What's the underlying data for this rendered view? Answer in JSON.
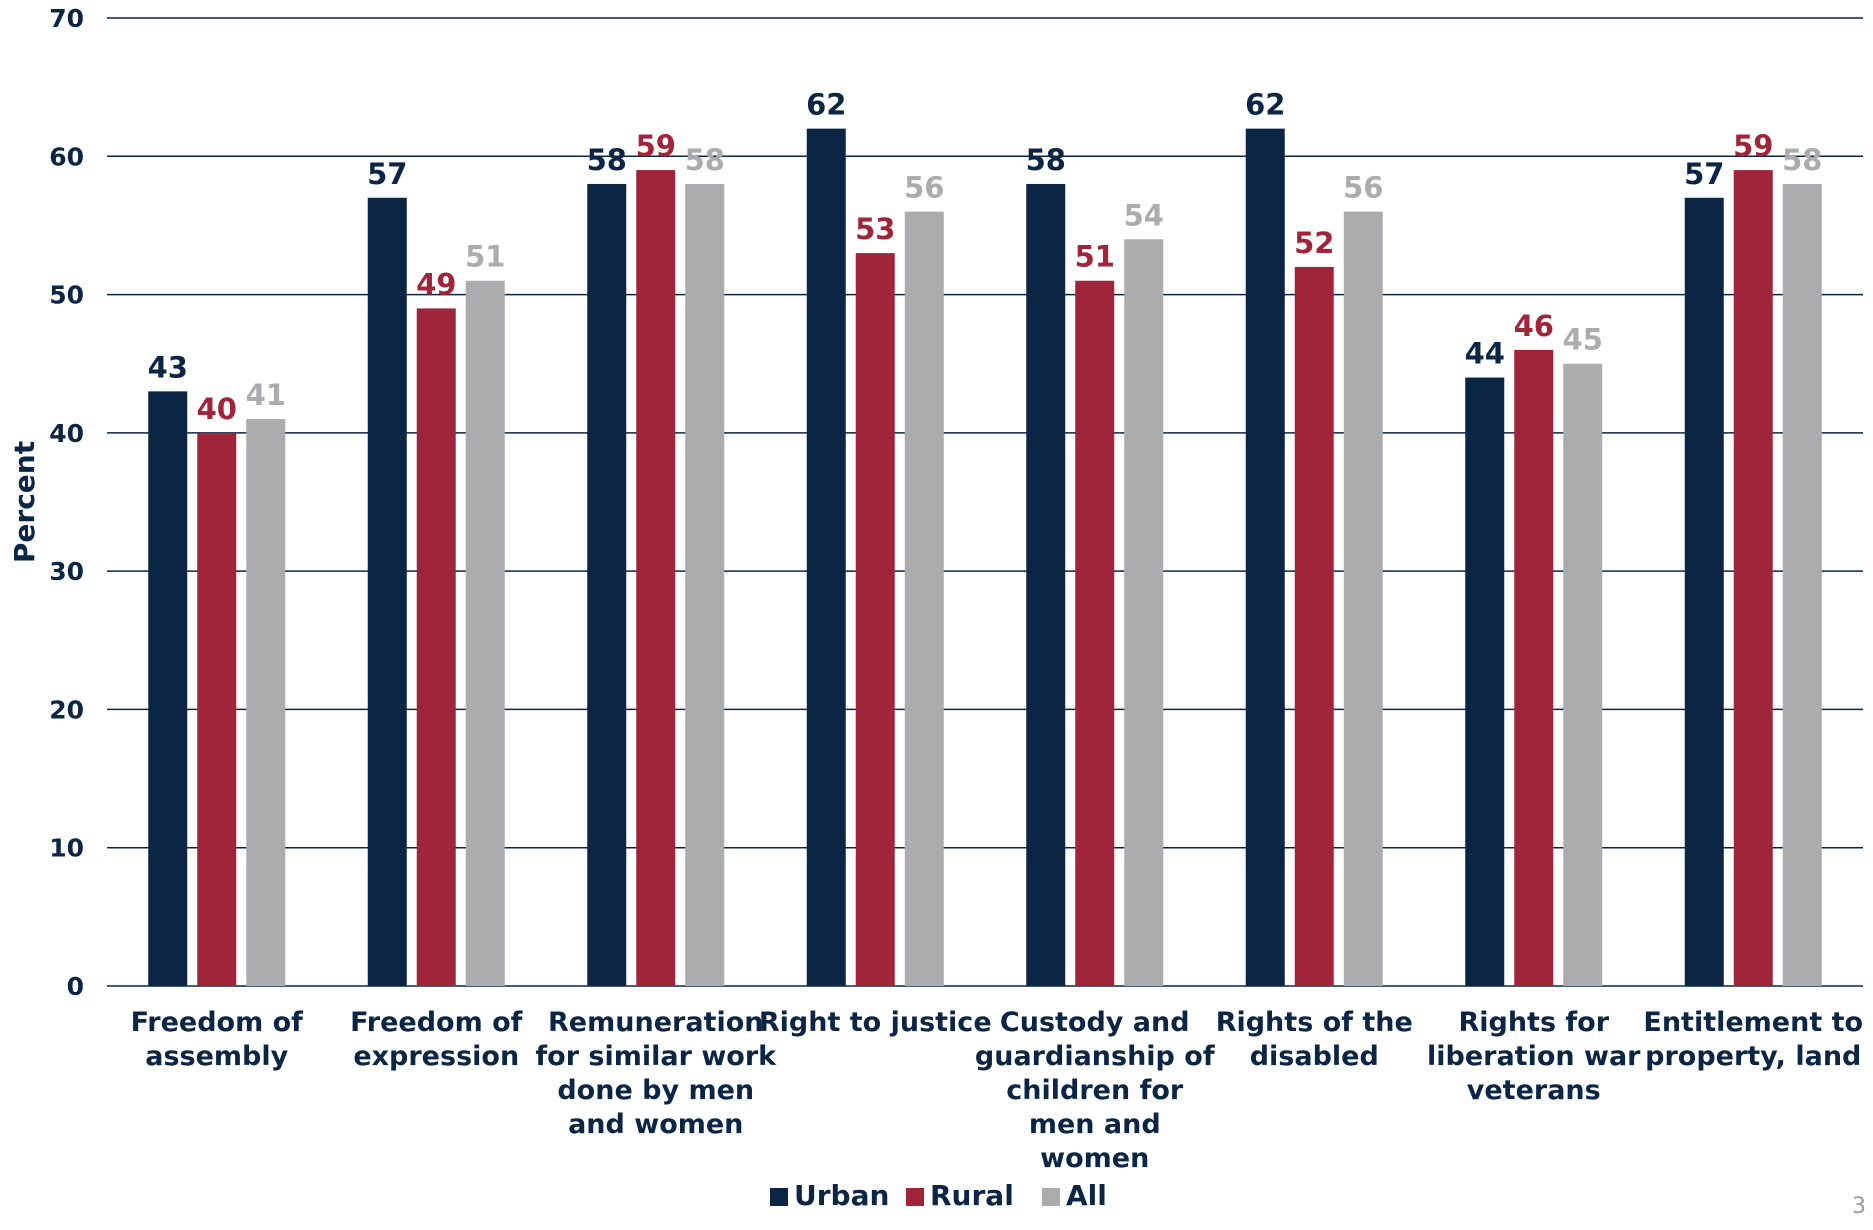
{
  "chart_data": {
    "type": "bar",
    "ylabel": "Percent",
    "ylim": [
      0,
      70
    ],
    "yticks": [
      0,
      10,
      20,
      30,
      40,
      50,
      60,
      70
    ],
    "grid": true,
    "legend_position": "bottom",
    "categories": [
      [
        "Freedom of",
        "assembly"
      ],
      [
        "Freedom of",
        "expression"
      ],
      [
        "Remuneration",
        "for similar work",
        "done by men",
        "and women"
      ],
      [
        "Right to justice"
      ],
      [
        "Custody and",
        "guardianship of",
        "children for",
        "men and",
        "women"
      ],
      [
        "Rights of the",
        "disabled"
      ],
      [
        "Rights for",
        "liberation war",
        "veterans"
      ],
      [
        "Entitlement to",
        "property, land"
      ]
    ],
    "series": [
      {
        "name": "Urban",
        "color": "#0b2545",
        "values": [
          43,
          57,
          58,
          62,
          58,
          62,
          44,
          57
        ]
      },
      {
        "name": "Rural",
        "color": "#a0253a",
        "values": [
          40,
          49,
          59,
          53,
          51,
          52,
          46,
          59
        ]
      },
      {
        "name": "All",
        "color": "#acacae",
        "values": [
          41,
          51,
          58,
          56,
          54,
          56,
          45,
          58
        ]
      }
    ]
  },
  "page_number": "3"
}
